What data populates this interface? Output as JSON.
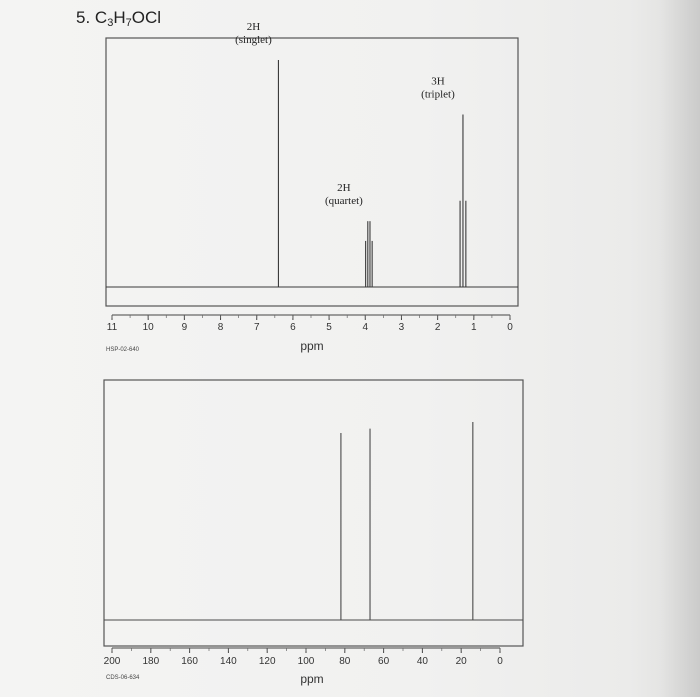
{
  "problem": {
    "number": "5.",
    "formula": [
      {
        "t": "C",
        "sub": false
      },
      {
        "t": "3",
        "sub": true
      },
      {
        "t": "H",
        "sub": false
      },
      {
        "t": "7",
        "sub": true
      },
      {
        "t": "OCl",
        "sub": false
      }
    ]
  },
  "chart_data": [
    {
      "type": "line",
      "title": "",
      "xlabel": "ppm",
      "code": "HSP-02-640",
      "xlim": [
        11,
        0
      ],
      "x_ticks": [
        11,
        10,
        9,
        8,
        7,
        6,
        5,
        4,
        3,
        2,
        1,
        0
      ],
      "grid": false,
      "peaks": [
        {
          "x": 6.4,
          "height": 1.0,
          "multiplicity": "singlet",
          "lines": [
            6.4
          ],
          "label_h": "2H",
          "label_mult": "(singlet)"
        },
        {
          "x": 3.9,
          "height": 0.29,
          "multiplicity": "quartet",
          "lines": [
            3.99,
            3.93,
            3.87,
            3.81
          ],
          "label_h": "2H",
          "label_mult": "(quartet)"
        },
        {
          "x": 1.3,
          "height": 0.76,
          "multiplicity": "triplet",
          "lines": [
            1.38,
            1.3,
            1.22
          ],
          "label_h": "3H",
          "label_mult": "(triplet)"
        }
      ]
    },
    {
      "type": "line",
      "title": "",
      "xlabel": "ppm",
      "code": "CDS-06-634",
      "xlim": [
        200,
        0
      ],
      "x_ticks": [
        200,
        180,
        160,
        140,
        120,
        100,
        80,
        60,
        40,
        20,
        0
      ],
      "grid": false,
      "peaks": [
        {
          "x": 82,
          "height": 0.85
        },
        {
          "x": 67,
          "height": 0.87
        },
        {
          "x": 14,
          "height": 0.9
        }
      ]
    }
  ]
}
